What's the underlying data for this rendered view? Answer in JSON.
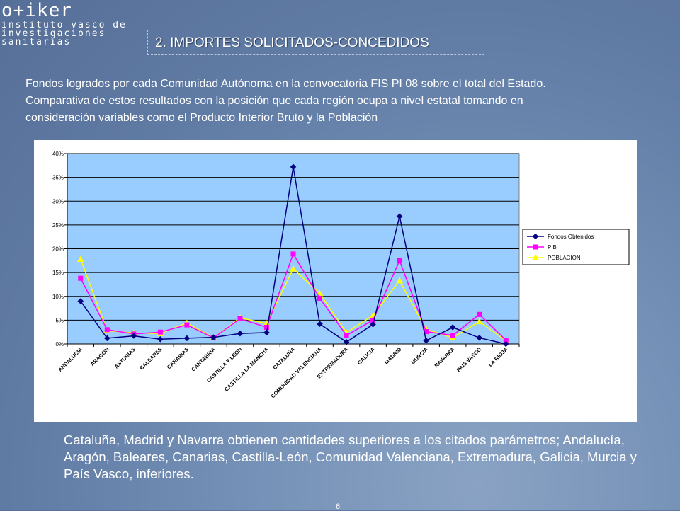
{
  "logo": {
    "name": "o+iker",
    "line1": "instituto vasco de",
    "line2": "investigaciones",
    "line3": "sanitarias"
  },
  "slide_title": "2. IMPORTES SOLICITADOS-CONCEDIDOS",
  "intro": {
    "line1": "Fondos logrados por cada Comunidad Autónoma  en la convocatoria FIS PI 08 sobre el total del Estado.",
    "line2": "Comparativa de estos resultados con la posición que cada región ocupa a nivel estatal tomando en",
    "line3_start": "consideración variables como el ",
    "link_pib": "Producto Interior Bruto",
    "line3_mid": " y la ",
    "link_poblacion": "Población"
  },
  "chart_data": {
    "type": "line",
    "title": "",
    "xlabel": "",
    "ylabel": "",
    "categories": [
      "ANDALUCIA",
      "ARAGON",
      "ASTURIAS",
      "BALEARES",
      "CANARIAS",
      "CANTABRIA",
      "CASTILLA Y LEON",
      "CASTILLA LA MANCHA",
      "CATALUÑA",
      "COMUNIDAD VALENCIANA",
      "EXTREMADURA",
      "GALICIA",
      "MADRID",
      "MURCIA",
      "NAVARRA",
      "PAIS VASCO",
      "LA RIOJA"
    ],
    "ylim": [
      0,
      0.4
    ],
    "yticks": [
      0,
      0.05,
      0.1,
      0.15,
      0.2,
      0.25,
      0.3,
      0.35,
      0.4
    ],
    "ytick_labels": [
      "0%",
      "5%",
      "10%",
      "15%",
      "20%",
      "25%",
      "30%",
      "35%",
      "40%"
    ],
    "grid": true,
    "legend_position": "right",
    "plot_background": "#99ccff",
    "series": [
      {
        "name": "Fondos Obtenidos",
        "color": "#000080",
        "marker": "diamond",
        "values": [
          0.09,
          0.012,
          0.017,
          0.01,
          0.012,
          0.014,
          0.022,
          0.024,
          0.372,
          0.042,
          0.004,
          0.041,
          0.268,
          0.007,
          0.035,
          0.013,
          0.0
        ]
      },
      {
        "name": "PIB",
        "color": "#ff00ff",
        "marker": "square",
        "values": [
          0.138,
          0.03,
          0.021,
          0.025,
          0.04,
          0.013,
          0.053,
          0.035,
          0.189,
          0.096,
          0.018,
          0.05,
          0.175,
          0.026,
          0.018,
          0.062,
          0.008
        ]
      },
      {
        "name": "POBLACION",
        "color": "#ffff00",
        "marker": "triangle",
        "values": [
          0.178,
          0.028,
          0.023,
          0.022,
          0.044,
          0.013,
          0.055,
          0.043,
          0.158,
          0.106,
          0.024,
          0.06,
          0.133,
          0.031,
          0.013,
          0.047,
          0.007
        ]
      }
    ]
  },
  "summary": "Cataluña, Madrid y Navarra obtienen cantidades superiores a los citados parámetros; Andalucía, Aragón, Baleares, Canarias, Castilla-León, Comunidad Valenciana, Extremadura, Galicia, Murcia y País Vasco, inferiores.",
  "page_number": "6"
}
